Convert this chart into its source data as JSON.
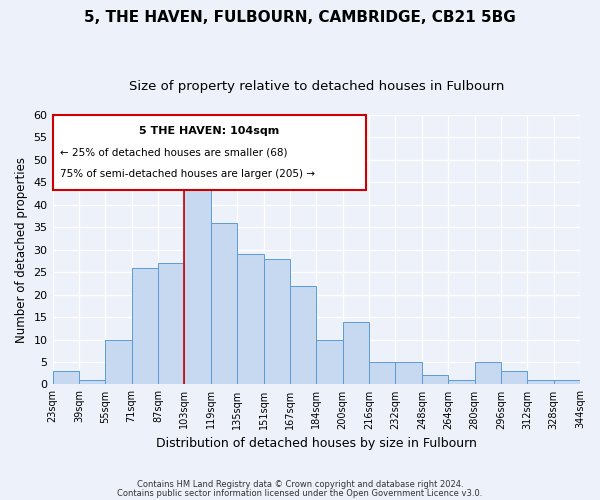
{
  "title": "5, THE HAVEN, FULBOURN, CAMBRIDGE, CB21 5BG",
  "subtitle": "Size of property relative to detached houses in Fulbourn",
  "xlabel": "Distribution of detached houses by size in Fulbourn",
  "ylabel": "Number of detached properties",
  "bin_labels": [
    "23sqm",
    "39sqm",
    "55sqm",
    "71sqm",
    "87sqm",
    "103sqm",
    "119sqm",
    "135sqm",
    "151sqm",
    "167sqm",
    "184sqm",
    "200sqm",
    "216sqm",
    "232sqm",
    "248sqm",
    "264sqm",
    "280sqm",
    "296sqm",
    "312sqm",
    "328sqm",
    "344sqm"
  ],
  "bar_values": [
    3,
    1,
    10,
    26,
    27,
    47,
    36,
    29,
    28,
    22,
    10,
    14,
    5,
    5,
    2,
    1,
    5,
    3,
    1,
    1
  ],
  "bar_color": "#c6d9f0",
  "bar_edge_color": "#5b9bd5",
  "highlight_index": 5,
  "highlight_line_color": "#cc0000",
  "ylim": [
    0,
    60
  ],
  "yticks": [
    0,
    5,
    10,
    15,
    20,
    25,
    30,
    35,
    40,
    45,
    50,
    55,
    60
  ],
  "annotation_title": "5 THE HAVEN: 104sqm",
  "annotation_line1": "← 25% of detached houses are smaller (68)",
  "annotation_line2": "75% of semi-detached houses are larger (205) →",
  "annotation_box_color": "#ffffff",
  "annotation_box_edge": "#cc0000",
  "footer_line1": "Contains HM Land Registry data © Crown copyright and database right 2024.",
  "footer_line2": "Contains public sector information licensed under the Open Government Licence v3.0.",
  "background_color": "#edf2fa",
  "grid_color": "#ffffff",
  "title_fontsize": 11,
  "subtitle_fontsize": 9.5
}
